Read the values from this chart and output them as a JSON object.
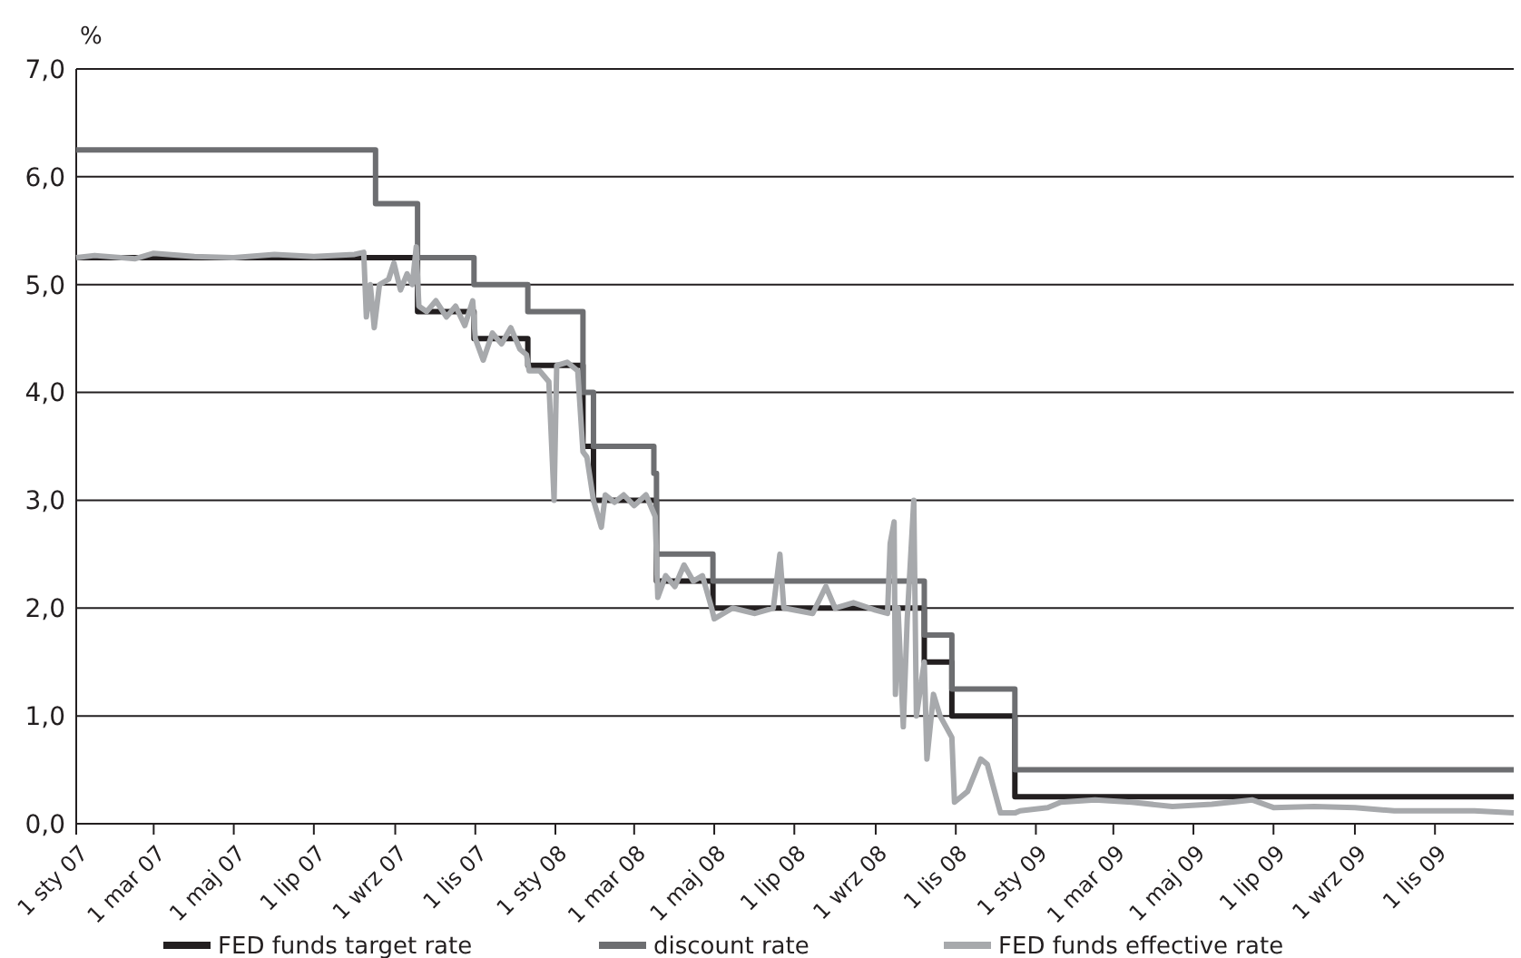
{
  "chart_data": {
    "type": "line",
    "ylabel": "%",
    "xlim": [
      "2007-01-01",
      "2009-12-31"
    ],
    "ylim": [
      0,
      7
    ],
    "yticks": [
      {
        "value": 0,
        "label": "0,0"
      },
      {
        "value": 1,
        "label": "1,0"
      },
      {
        "value": 2,
        "label": "2,0"
      },
      {
        "value": 3,
        "label": "3,0"
      },
      {
        "value": 4,
        "label": "4,0"
      },
      {
        "value": 5,
        "label": "5,0"
      },
      {
        "value": 6,
        "label": "6,0"
      },
      {
        "value": 7,
        "label": "7,0"
      }
    ],
    "xticks": [
      {
        "value": "2007-01-01",
        "label": "1 sty 07"
      },
      {
        "value": "2007-03-01",
        "label": "1 mar 07"
      },
      {
        "value": "2007-05-01",
        "label": "1 maj 07"
      },
      {
        "value": "2007-07-01",
        "label": "1 lip 07"
      },
      {
        "value": "2007-09-01",
        "label": "1 wrz 07"
      },
      {
        "value": "2007-11-01",
        "label": "1 lis 07"
      },
      {
        "value": "2008-01-01",
        "label": "1 sty 08"
      },
      {
        "value": "2008-03-01",
        "label": "1 mar 08"
      },
      {
        "value": "2008-05-01",
        "label": "1 maj 08"
      },
      {
        "value": "2008-07-01",
        "label": "1 lip 08"
      },
      {
        "value": "2008-09-01",
        "label": "1 wrz 08"
      },
      {
        "value": "2008-11-01",
        "label": "1 lis 08"
      },
      {
        "value": "2009-01-01",
        "label": "1 sty 09"
      },
      {
        "value": "2009-03-01",
        "label": "1 mar 09"
      },
      {
        "value": "2009-05-01",
        "label": "1 maj 09"
      },
      {
        "value": "2009-07-01",
        "label": "1 lip 09"
      },
      {
        "value": "2009-09-01",
        "label": "1 wrz 09"
      },
      {
        "value": "2009-11-01",
        "label": "1 lis 09"
      }
    ],
    "grid": "y",
    "legend": "bottom",
    "series": [
      {
        "name": "FED funds target rate",
        "type": "step",
        "color": "#231f20",
        "x": [
          "2007-01-01",
          "2007-09-18",
          "2007-10-31",
          "2007-12-11",
          "2008-01-22",
          "2008-01-30",
          "2008-03-18",
          "2008-04-30",
          "2008-10-08",
          "2008-10-29",
          "2008-12-16",
          "2009-12-31"
        ],
        "values": [
          5.25,
          4.75,
          4.5,
          4.25,
          3.5,
          3.0,
          2.25,
          2.0,
          1.5,
          1.0,
          0.25,
          0.25
        ]
      },
      {
        "name": "discount rate",
        "type": "step",
        "color": "#6d6e71",
        "x": [
          "2007-01-01",
          "2007-08-17",
          "2007-09-18",
          "2007-10-31",
          "2007-12-11",
          "2008-01-22",
          "2008-01-30",
          "2008-03-16",
          "2008-03-18",
          "2008-04-30",
          "2008-10-08",
          "2008-10-29",
          "2008-12-16",
          "2009-12-31"
        ],
        "values": [
          6.25,
          5.75,
          5.25,
          5.0,
          4.75,
          4.0,
          3.5,
          3.25,
          2.5,
          2.25,
          1.75,
          1.25,
          0.5,
          0.5
        ]
      },
      {
        "name": "FED funds effective rate",
        "type": "line",
        "color": "#a7a9ac",
        "x": [
          "2007-01-01",
          "2007-01-15",
          "2007-02-15",
          "2007-03-01",
          "2007-04-01",
          "2007-05-01",
          "2007-06-01",
          "2007-07-01",
          "2007-08-01",
          "2007-08-08",
          "2007-08-10",
          "2007-08-13",
          "2007-08-16",
          "2007-08-20",
          "2007-08-27",
          "2007-08-31",
          "2007-09-05",
          "2007-09-10",
          "2007-09-14",
          "2007-09-17",
          "2007-09-19",
          "2007-09-25",
          "2007-10-02",
          "2007-10-10",
          "2007-10-17",
          "2007-10-24",
          "2007-10-30",
          "2007-11-01",
          "2007-11-07",
          "2007-11-14",
          "2007-11-21",
          "2007-11-28",
          "2007-12-05",
          "2007-12-10",
          "2007-12-12",
          "2007-12-20",
          "2007-12-27",
          "2007-12-31",
          "2008-01-02",
          "2008-01-10",
          "2008-01-18",
          "2008-01-22",
          "2008-01-25",
          "2008-01-30",
          "2008-02-05",
          "2008-02-08",
          "2008-02-15",
          "2008-02-22",
          "2008-03-01",
          "2008-03-10",
          "2008-03-17",
          "2008-03-19",
          "2008-03-25",
          "2008-04-01",
          "2008-04-08",
          "2008-04-15",
          "2008-04-22",
          "2008-04-29",
          "2008-05-01",
          "2008-05-15",
          "2008-06-01",
          "2008-06-15",
          "2008-06-20",
          "2008-06-23",
          "2008-07-15",
          "2008-07-25",
          "2008-08-01",
          "2008-08-15",
          "2008-09-01",
          "2008-09-10",
          "2008-09-12",
          "2008-09-15",
          "2008-09-16",
          "2008-09-18",
          "2008-09-22",
          "2008-09-25",
          "2008-09-30",
          "2008-10-02",
          "2008-10-08",
          "2008-10-10",
          "2008-10-15",
          "2008-10-20",
          "2008-10-29",
          "2008-10-31",
          "2008-11-10",
          "2008-11-20",
          "2008-11-25",
          "2008-12-05",
          "2008-12-16",
          "2008-12-20",
          "2009-01-10",
          "2009-01-20",
          "2009-02-15",
          "2009-03-15",
          "2009-04-15",
          "2009-05-15",
          "2009-06-15",
          "2009-07-01",
          "2009-08-01",
          "2009-09-01",
          "2009-10-01",
          "2009-11-01",
          "2009-12-01",
          "2009-12-31"
        ],
        "values": [
          5.25,
          5.27,
          5.24,
          5.29,
          5.26,
          5.25,
          5.28,
          5.26,
          5.28,
          5.3,
          4.7,
          5.0,
          4.6,
          5.0,
          5.05,
          5.2,
          4.95,
          5.1,
          5.0,
          5.35,
          4.8,
          4.75,
          4.85,
          4.7,
          4.8,
          4.62,
          4.85,
          4.5,
          4.3,
          4.55,
          4.45,
          4.6,
          4.4,
          4.35,
          4.2,
          4.2,
          4.1,
          3.0,
          4.25,
          4.28,
          4.2,
          3.45,
          3.4,
          3.0,
          2.75,
          3.05,
          2.98,
          3.05,
          2.95,
          3.05,
          2.85,
          2.1,
          2.3,
          2.2,
          2.4,
          2.25,
          2.3,
          2.0,
          1.9,
          2.0,
          1.95,
          2.0,
          2.5,
          2.0,
          1.95,
          2.2,
          2.0,
          2.05,
          1.98,
          1.95,
          2.6,
          2.8,
          1.2,
          2.0,
          0.9,
          1.9,
          3.0,
          1.0,
          1.5,
          0.6,
          1.2,
          1.0,
          0.8,
          0.2,
          0.3,
          0.6,
          0.55,
          0.1,
          0.1,
          0.12,
          0.15,
          0.2,
          0.22,
          0.2,
          0.16,
          0.18,
          0.22,
          0.15,
          0.16,
          0.15,
          0.12,
          0.12,
          0.12,
          0.1
        ]
      }
    ]
  }
}
